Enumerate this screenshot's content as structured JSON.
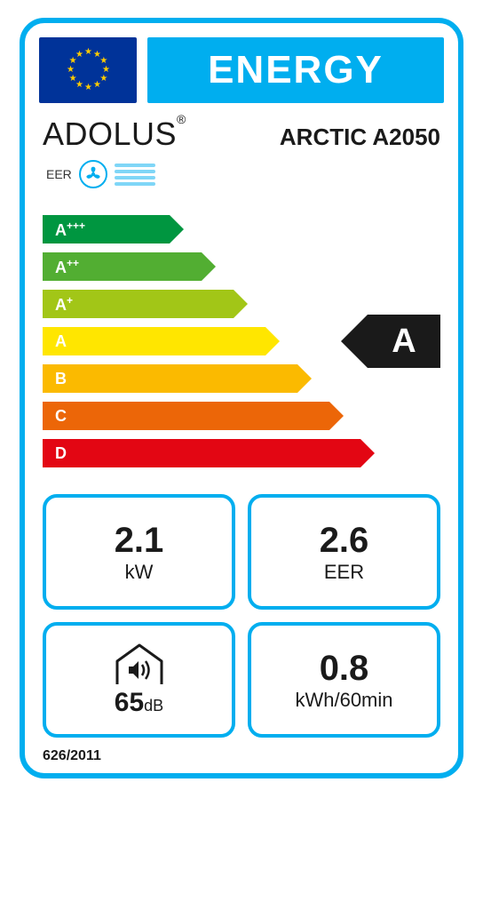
{
  "header": {
    "title": "ENERGY",
    "flag_bg": "#003399",
    "flag_star_color": "#ffcc00",
    "banner_color": "#00aeef"
  },
  "brand": {
    "name": "ADOLUS",
    "name_font": "Arial",
    "model": "ARCTIC A2050"
  },
  "mode": {
    "label": "EER",
    "icon_color": "#00aeef"
  },
  "scale": {
    "classes": [
      {
        "label": "A+++",
        "color": "#009640",
        "width_pct": 32,
        "arrow_color": "#009640"
      },
      {
        "label": "A++",
        "color": "#52ae32",
        "width_pct": 40,
        "arrow_color": "#52ae32"
      },
      {
        "label": "A+",
        "color": "#a2c617",
        "width_pct": 48,
        "arrow_color": "#a2c617"
      },
      {
        "label": "A",
        "color": "#ffe600",
        "width_pct": 56,
        "arrow_color": "#ffe600"
      },
      {
        "label": "B",
        "color": "#fbba00",
        "width_pct": 64,
        "arrow_color": "#fbba00"
      },
      {
        "label": "C",
        "color": "#ec6608",
        "width_pct": 72,
        "arrow_color": "#ec6608"
      },
      {
        "label": "D",
        "color": "#e30613",
        "width_pct": 80,
        "arrow_color": "#e30613"
      }
    ],
    "rating": {
      "label": "A",
      "row_index": 3,
      "pointer_bg": "#1a1a1a",
      "pointer_color": "#ffffff"
    }
  },
  "specs": {
    "power": {
      "value": "2.1",
      "unit": "kW"
    },
    "eer": {
      "value": "2.6",
      "unit": "EER"
    },
    "noise": {
      "value": "65",
      "unit": "dB"
    },
    "consumption": {
      "value": "0.8",
      "unit": "kWh/60min"
    }
  },
  "regulation": "626/2011",
  "style": {
    "border_color": "#00aeef",
    "border_width": 6,
    "border_radius": 28,
    "text_color": "#1a1a1a",
    "spec_box_radius": 16
  }
}
